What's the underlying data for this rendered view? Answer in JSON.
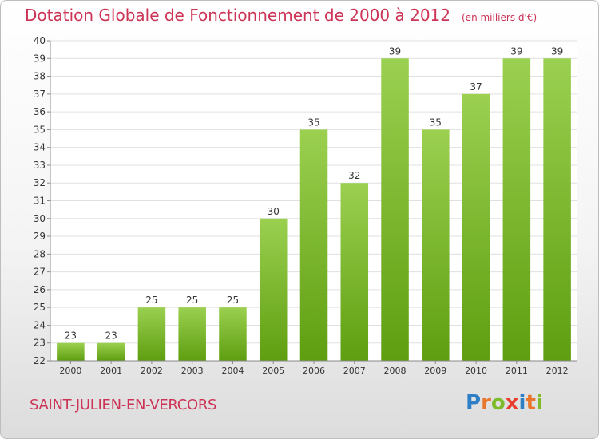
{
  "header": {
    "title": "Dotation Globale de Fonctionnement de 2000 à 2012",
    "unit": "(en milliers d'€)"
  },
  "footer": {
    "town": "SAINT-JULIEN-EN-VERCORS",
    "brand_letters": [
      {
        "char": "P",
        "color": "#2e7fc6"
      },
      {
        "char": "r",
        "color": "#e8762d"
      },
      {
        "char": "o",
        "color": "#7dbb2a"
      },
      {
        "char": "x",
        "color": "#e83c2c"
      },
      {
        "char": "i",
        "color": "#2e7fc6"
      },
      {
        "char": "t",
        "color": "#e8762d"
      },
      {
        "char": "i",
        "color": "#7dbb2a"
      }
    ]
  },
  "chart_data": {
    "type": "bar",
    "categories": [
      "2000",
      "2001",
      "2002",
      "2003",
      "2004",
      "2005",
      "2006",
      "2007",
      "2008",
      "2009",
      "2010",
      "2011",
      "2012"
    ],
    "values": [
      23,
      23,
      25,
      25,
      25,
      30,
      35,
      32,
      39,
      35,
      37,
      39,
      39
    ],
    "title": "Dotation Globale de Fonctionnement de 2000 à 2012",
    "ylim": [
      22,
      40
    ],
    "yticks": [
      22,
      23,
      24,
      25,
      26,
      27,
      28,
      29,
      30,
      31,
      32,
      33,
      34,
      35,
      36,
      37,
      38,
      39,
      40
    ],
    "grid": true,
    "bar_color_top": "#9bd050",
    "bar_color_bottom": "#5e9e10"
  }
}
